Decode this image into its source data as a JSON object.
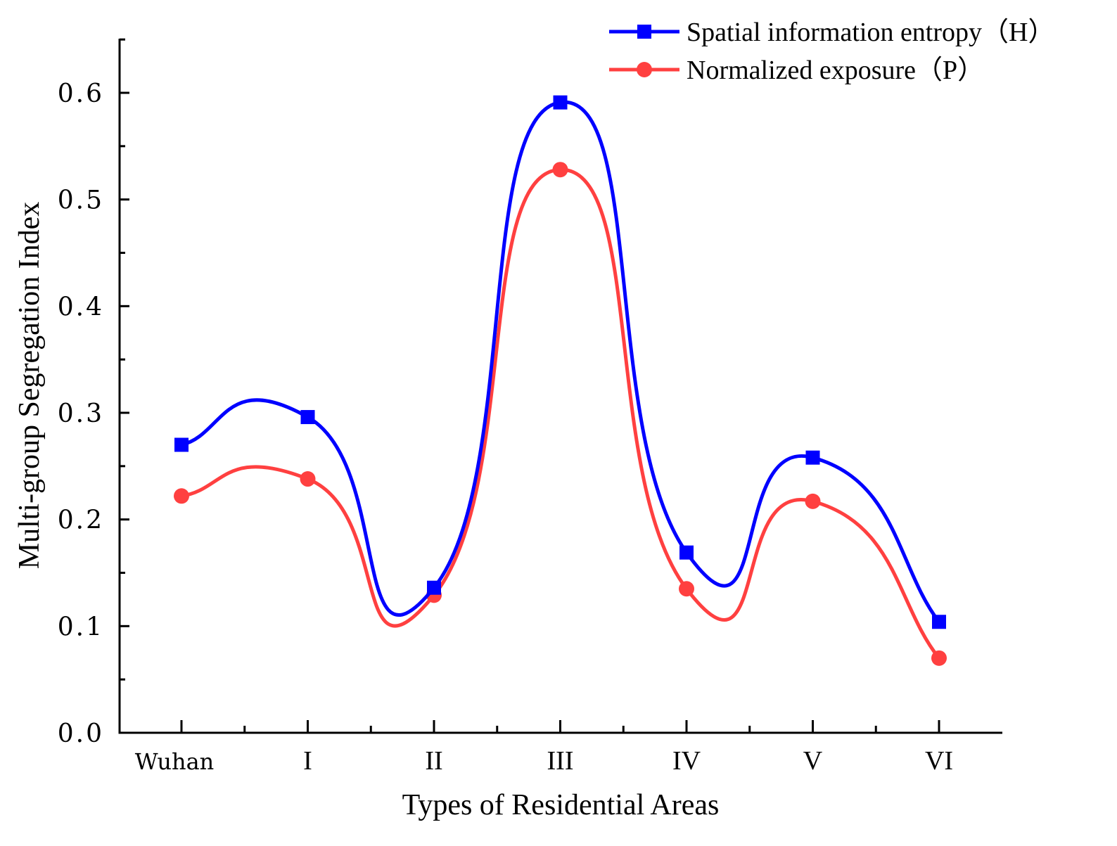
{
  "chart_data": {
    "type": "line",
    "xlabel": "Types of Residential Areas",
    "ylabel": "Multi-group Segregation Index",
    "categories": [
      "Wuhan",
      "I",
      "II",
      "III",
      "IV",
      "V",
      "VI"
    ],
    "yticks": [
      "0.0",
      "0.1",
      "0.2",
      "0.3",
      "0.4",
      "0.5",
      "0.6"
    ],
    "ylim": [
      0,
      0.65
    ],
    "grid": false,
    "legend_position": "top-right",
    "series": [
      {
        "name": "Spatial information entropy（H）",
        "marker": "square",
        "color": "#0000ff",
        "values": [
          0.27,
          0.296,
          0.136,
          0.591,
          0.169,
          0.258,
          0.104
        ]
      },
      {
        "name": "Normalized exposure（P）",
        "marker": "circle",
        "color": "#ff4040",
        "values": [
          0.222,
          0.238,
          0.129,
          0.528,
          0.135,
          0.217,
          0.07
        ]
      }
    ]
  }
}
